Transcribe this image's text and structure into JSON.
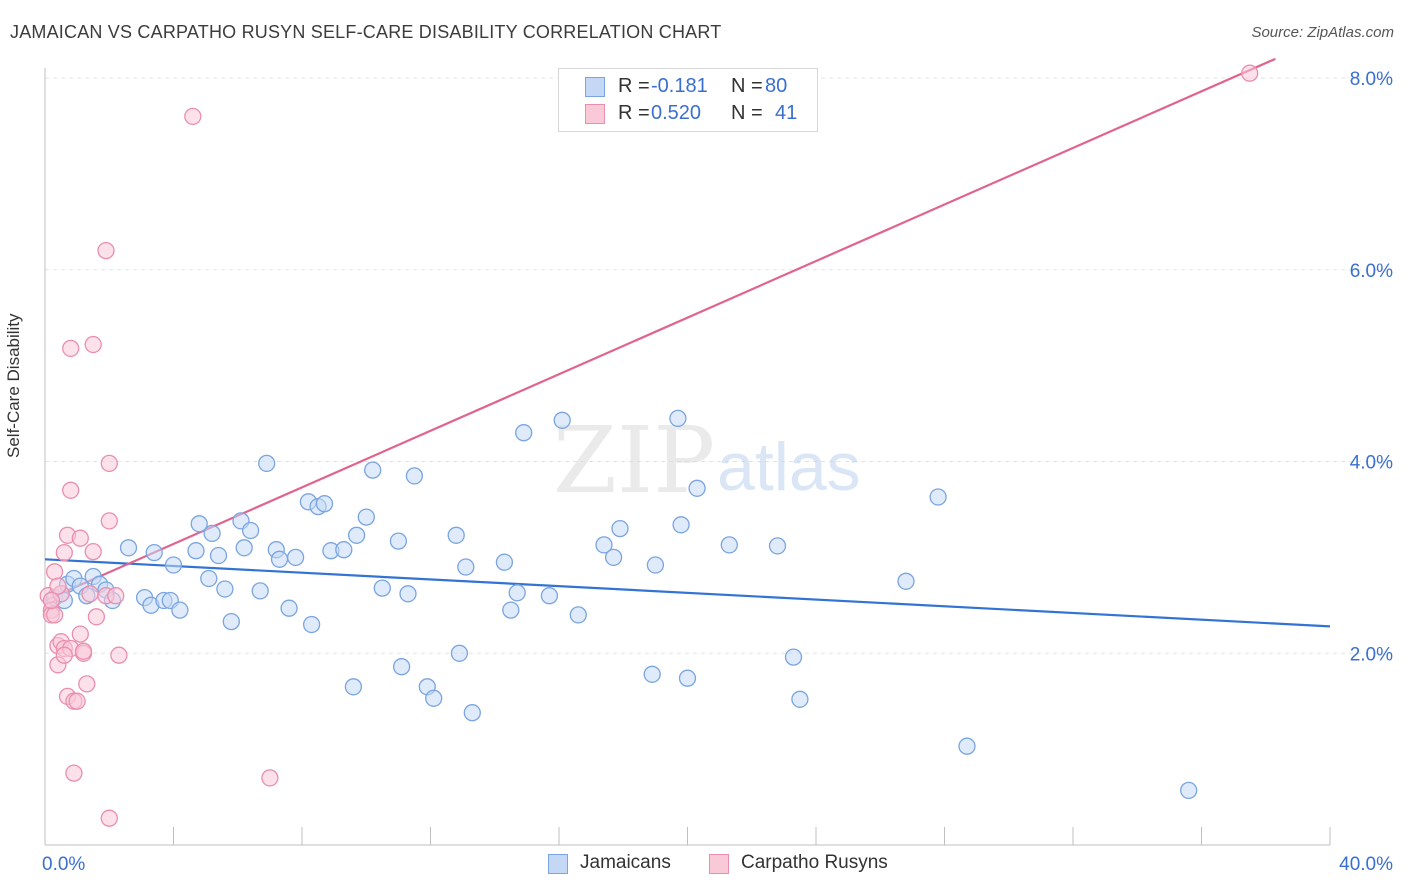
{
  "header": {
    "title": "JAMAICAN VS CARPATHO RUSYN SELF-CARE DISABILITY CORRELATION CHART",
    "source": "Source: ZipAtlas.com"
  },
  "watermark": {
    "zip": "ZIP",
    "atlas": "atlas"
  },
  "legend": {
    "r_label": "R = ",
    "n_label": "N = ",
    "series": [
      {
        "name": "Jamaicans",
        "r": "-0.181",
        "n": "80",
        "fill": "#c4d8f5",
        "stroke": "#7aa5e0"
      },
      {
        "name": "Carpatho Rusyns",
        "r": "0.520",
        "n": "41",
        "fill": "#f9c9d8",
        "stroke": "#e98fae"
      }
    ]
  },
  "chart_data": {
    "type": "scatter",
    "title": "JAMAICAN VS CARPATHO RUSYN SELF-CARE DISABILITY CORRELATION CHART",
    "xlabel": "",
    "ylabel": "Self-Care Disability",
    "xlim": [
      0,
      40
    ],
    "ylim": [
      0,
      8
    ],
    "x_tick_labels": [
      "0.0%",
      "40.0%"
    ],
    "y_ticks": [
      2,
      4,
      6,
      8
    ],
    "y_tick_labels": [
      "2.0%",
      "4.0%",
      "6.0%",
      "8.0%"
    ],
    "grid": true,
    "series": [
      {
        "name": "Jamaicans",
        "color": "#7aa5e0",
        "fill": "#c4d8f5",
        "trend": {
          "x": [
            0,
            40
          ],
          "y": [
            2.98,
            2.28
          ],
          "color": "#3273d4"
        },
        "points": [
          [
            0.3,
            2.58
          ],
          [
            0.5,
            2.62
          ],
          [
            0.7,
            2.72
          ],
          [
            0.9,
            2.78
          ],
          [
            1.1,
            2.7
          ],
          [
            1.3,
            2.6
          ],
          [
            1.5,
            2.8
          ],
          [
            1.7,
            2.72
          ],
          [
            1.9,
            2.66
          ],
          [
            2.1,
            2.55
          ],
          [
            2.6,
            3.1
          ],
          [
            3.1,
            2.58
          ],
          [
            3.3,
            2.5
          ],
          [
            3.4,
            3.05
          ],
          [
            3.7,
            2.55
          ],
          [
            3.9,
            2.55
          ],
          [
            4.0,
            2.92
          ],
          [
            4.2,
            2.45
          ],
          [
            4.7,
            3.07
          ],
          [
            4.8,
            3.35
          ],
          [
            5.1,
            2.78
          ],
          [
            5.2,
            3.25
          ],
          [
            5.4,
            3.02
          ],
          [
            5.6,
            2.67
          ],
          [
            5.8,
            2.33
          ],
          [
            6.1,
            3.38
          ],
          [
            6.2,
            3.1
          ],
          [
            6.4,
            3.28
          ],
          [
            6.7,
            2.65
          ],
          [
            6.9,
            3.98
          ],
          [
            7.2,
            3.08
          ],
          [
            7.3,
            2.98
          ],
          [
            7.6,
            2.47
          ],
          [
            7.8,
            3.0
          ],
          [
            8.2,
            3.58
          ],
          [
            8.3,
            2.3
          ],
          [
            8.5,
            3.53
          ],
          [
            8.7,
            3.56
          ],
          [
            8.9,
            3.07
          ],
          [
            9.3,
            3.08
          ],
          [
            9.6,
            1.65
          ],
          [
            9.7,
            3.23
          ],
          [
            10.0,
            3.42
          ],
          [
            10.2,
            3.91
          ],
          [
            10.5,
            2.68
          ],
          [
            11.0,
            3.17
          ],
          [
            11.1,
            1.86
          ],
          [
            11.3,
            2.62
          ],
          [
            11.5,
            3.85
          ],
          [
            11.9,
            1.65
          ],
          [
            12.1,
            1.53
          ],
          [
            12.8,
            3.23
          ],
          [
            12.9,
            2.0
          ],
          [
            13.1,
            2.9
          ],
          [
            13.3,
            1.38
          ],
          [
            14.3,
            2.95
          ],
          [
            14.5,
            2.45
          ],
          [
            14.7,
            2.63
          ],
          [
            14.9,
            4.3
          ],
          [
            15.7,
            2.6
          ],
          [
            16.1,
            4.43
          ],
          [
            16.6,
            2.4
          ],
          [
            17.4,
            3.13
          ],
          [
            17.7,
            3.0
          ],
          [
            17.9,
            3.3
          ],
          [
            18.9,
            1.78
          ],
          [
            19.0,
            2.92
          ],
          [
            19.7,
            4.45
          ],
          [
            19.8,
            3.34
          ],
          [
            20.0,
            1.74
          ],
          [
            20.3,
            3.72
          ],
          [
            21.3,
            3.13
          ],
          [
            22.8,
            3.12
          ],
          [
            23.3,
            1.96
          ],
          [
            23.5,
            1.52
          ],
          [
            26.8,
            2.75
          ],
          [
            27.8,
            3.63
          ],
          [
            28.7,
            1.03
          ],
          [
            35.6,
            0.57
          ],
          [
            0.6,
            2.55
          ]
        ]
      },
      {
        "name": "Carpatho Rusyns",
        "color": "#e98fae",
        "fill": "#f9c9d8",
        "trend": {
          "x": [
            0,
            38.3
          ],
          "y": [
            2.55,
            8.2
          ],
          "color": "#e0648e"
        },
        "points": [
          [
            0.1,
            2.6
          ],
          [
            0.2,
            2.45
          ],
          [
            0.2,
            2.4
          ],
          [
            0.3,
            2.85
          ],
          [
            0.4,
            2.08
          ],
          [
            0.4,
            1.88
          ],
          [
            0.5,
            2.12
          ],
          [
            0.5,
            2.62
          ],
          [
            0.6,
            3.05
          ],
          [
            0.6,
            2.05
          ],
          [
            0.7,
            1.55
          ],
          [
            0.7,
            3.23
          ],
          [
            0.8,
            3.7
          ],
          [
            0.8,
            5.18
          ],
          [
            0.8,
            2.05
          ],
          [
            0.9,
            1.5
          ],
          [
            0.9,
            0.75
          ],
          [
            1.0,
            1.5
          ],
          [
            1.1,
            3.2
          ],
          [
            1.1,
            2.2
          ],
          [
            1.2,
            2.0
          ],
          [
            1.3,
            1.68
          ],
          [
            1.4,
            2.62
          ],
          [
            1.5,
            5.22
          ],
          [
            1.6,
            2.38
          ],
          [
            1.9,
            6.2
          ],
          [
            1.9,
            2.6
          ],
          [
            2.0,
            3.38
          ],
          [
            2.0,
            3.98
          ],
          [
            2.0,
            0.28
          ],
          [
            2.2,
            2.6
          ],
          [
            2.3,
            1.98
          ],
          [
            4.6,
            7.6
          ],
          [
            7.0,
            0.7
          ],
          [
            37.5,
            8.05
          ],
          [
            0.3,
            2.4
          ],
          [
            0.4,
            2.7
          ],
          [
            0.6,
            1.98
          ],
          [
            1.2,
            2.02
          ],
          [
            1.5,
            3.06
          ],
          [
            0.2,
            2.55
          ]
        ]
      }
    ]
  }
}
